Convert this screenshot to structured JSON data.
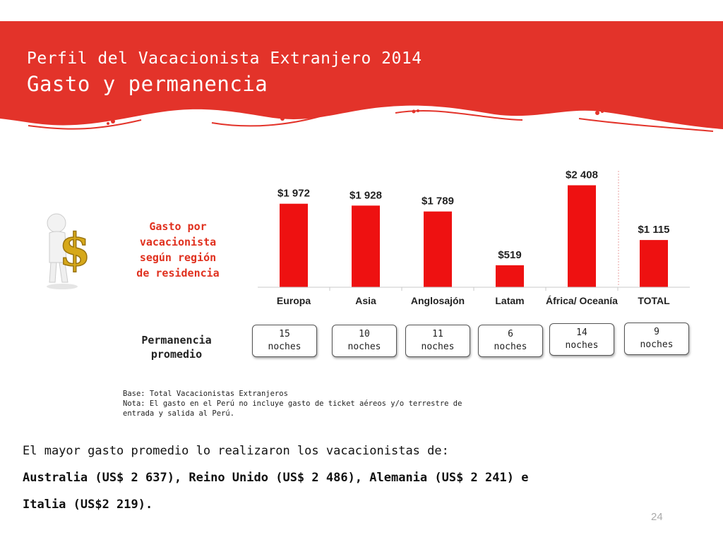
{
  "header": {
    "title_line1": "Perfil del Vacacionista Extranjero 2014",
    "title_line2": "Gasto y permanencia"
  },
  "colors": {
    "brand_red": "#e3332a",
    "bar_red": "#ee1111",
    "text_dark": "#222222",
    "label_red": "#e0301e"
  },
  "spend_label": [
    "Gasto por",
    "vacacionista",
    "según región",
    "de residencia"
  ],
  "stay_label": [
    "Permanencia",
    "promedio"
  ],
  "chart_data": {
    "type": "bar",
    "categories": [
      "Europa",
      "Asia",
      "Anglosajón",
      "Latam",
      "África/ Oceanía",
      "TOTAL"
    ],
    "values": [
      1972,
      1928,
      1789,
      519,
      2408,
      1115
    ],
    "value_labels": [
      "$1 972",
      "$1 928",
      "$1 789",
      "$519",
      "$2 408",
      "$1 115"
    ],
    "ylim": [
      0,
      2600
    ],
    "grid": false,
    "title": "",
    "xlabel": "",
    "ylabel": ""
  },
  "stays": [
    {
      "number": "15",
      "unit": "noches"
    },
    {
      "number": "10",
      "unit": "noches"
    },
    {
      "number": "11",
      "unit": "noches"
    },
    {
      "number": "6",
      "unit": "noches"
    },
    {
      "number": "14",
      "unit": "noches"
    },
    {
      "number": "9",
      "unit": "noches"
    }
  ],
  "notes": {
    "base": "Base: Total Vacacionistas Extranjeros",
    "nota_line1": "Nota: El gasto en el Perú no incluye gasto de ticket aéreos y/o terrestre de",
    "nota_line2": "entrada y salida al Perú."
  },
  "conclusion": {
    "line1": "El mayor gasto promedio lo realizaron los vacacionistas de:",
    "line2": "Australia (US$ 2 637), Reino Unido (US$ 2 486),  Alemania (US$ 2 241) e",
    "line3": "Italia (US$2 219)."
  },
  "page_number": "24"
}
